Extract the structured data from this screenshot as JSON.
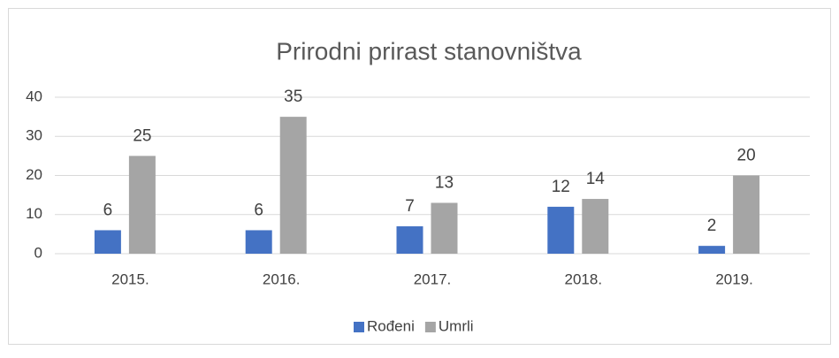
{
  "chart_data": {
    "type": "bar",
    "title": "Prirodni prirast stanovništva",
    "categories": [
      "2015.",
      "2016.",
      "2017.",
      "2018.",
      "2019."
    ],
    "series": [
      {
        "name": "Rođeni",
        "color": "#4472c4",
        "values": [
          6,
          6,
          7,
          12,
          2
        ]
      },
      {
        "name": "Umrli",
        "color": "#a5a5a5",
        "values": [
          25,
          35,
          13,
          14,
          20
        ]
      }
    ],
    "ylim": [
      0,
      40
    ],
    "yticks": [
      0,
      10,
      20,
      30,
      40
    ],
    "grid": true,
    "legend": "bottom"
  }
}
